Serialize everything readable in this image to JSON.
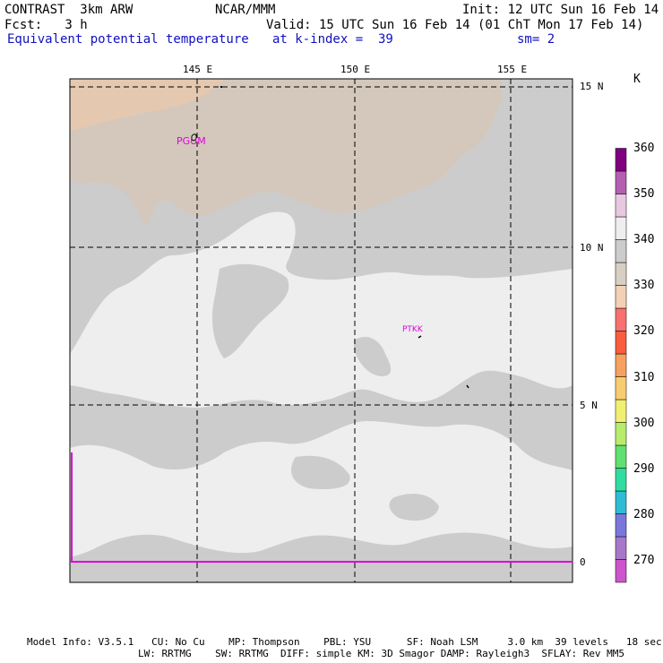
{
  "header": {
    "model": "CONTRAST  3km ARW",
    "center": "NCAR/MMM",
    "init": "Init: 12 UTC Sun 16 Feb 14",
    "fcst": "Fcst:   3 h",
    "valid": "Valid: 15 UTC Sun 16 Feb 14 (01 ChT Mon 17 Feb 14)",
    "field": "Equivalent potential temperature",
    "level": "at k-index =  39",
    "smooth": "sm= 2"
  },
  "axes": {
    "lon_labels": [
      "145 E",
      "150 E",
      "155 E"
    ],
    "lat_labels": [
      "15 N",
      "10 N",
      "5 N",
      "0"
    ]
  },
  "stations": [
    "PGUM",
    "PTKK"
  ],
  "colorbar": {
    "unit": "K",
    "labels": [
      "360",
      "350",
      "340",
      "330",
      "320",
      "310",
      "300",
      "290",
      "280",
      "270"
    ],
    "colors": [
      "#cc55cc",
      "#a878c8",
      "#7878dc",
      "#30bcd4",
      "#30dca0",
      "#60e070",
      "#b8ec6c",
      "#f0f070",
      "#f8cc70",
      "#f8a060",
      "#fa5c40",
      "#f87070",
      "#f4d0b4",
      "#d8cfc4",
      "#cccccc",
      "#eeeeee",
      "#e8c8e0",
      "#b460b0",
      "#800080"
    ]
  },
  "footer": {
    "line1": "Model Info: V3.5.1   CU: No Cu    MP: Thompson    PBL: YSU      SF: Noah LSM     3.0 km  39 levels   18 sec",
    "line2": "LW: RRTMG    SW: RRTMG  DIFF: simple KM: 3D Smagor DAMP: Rayleigh3  SFLAY: Rev MM5"
  }
}
